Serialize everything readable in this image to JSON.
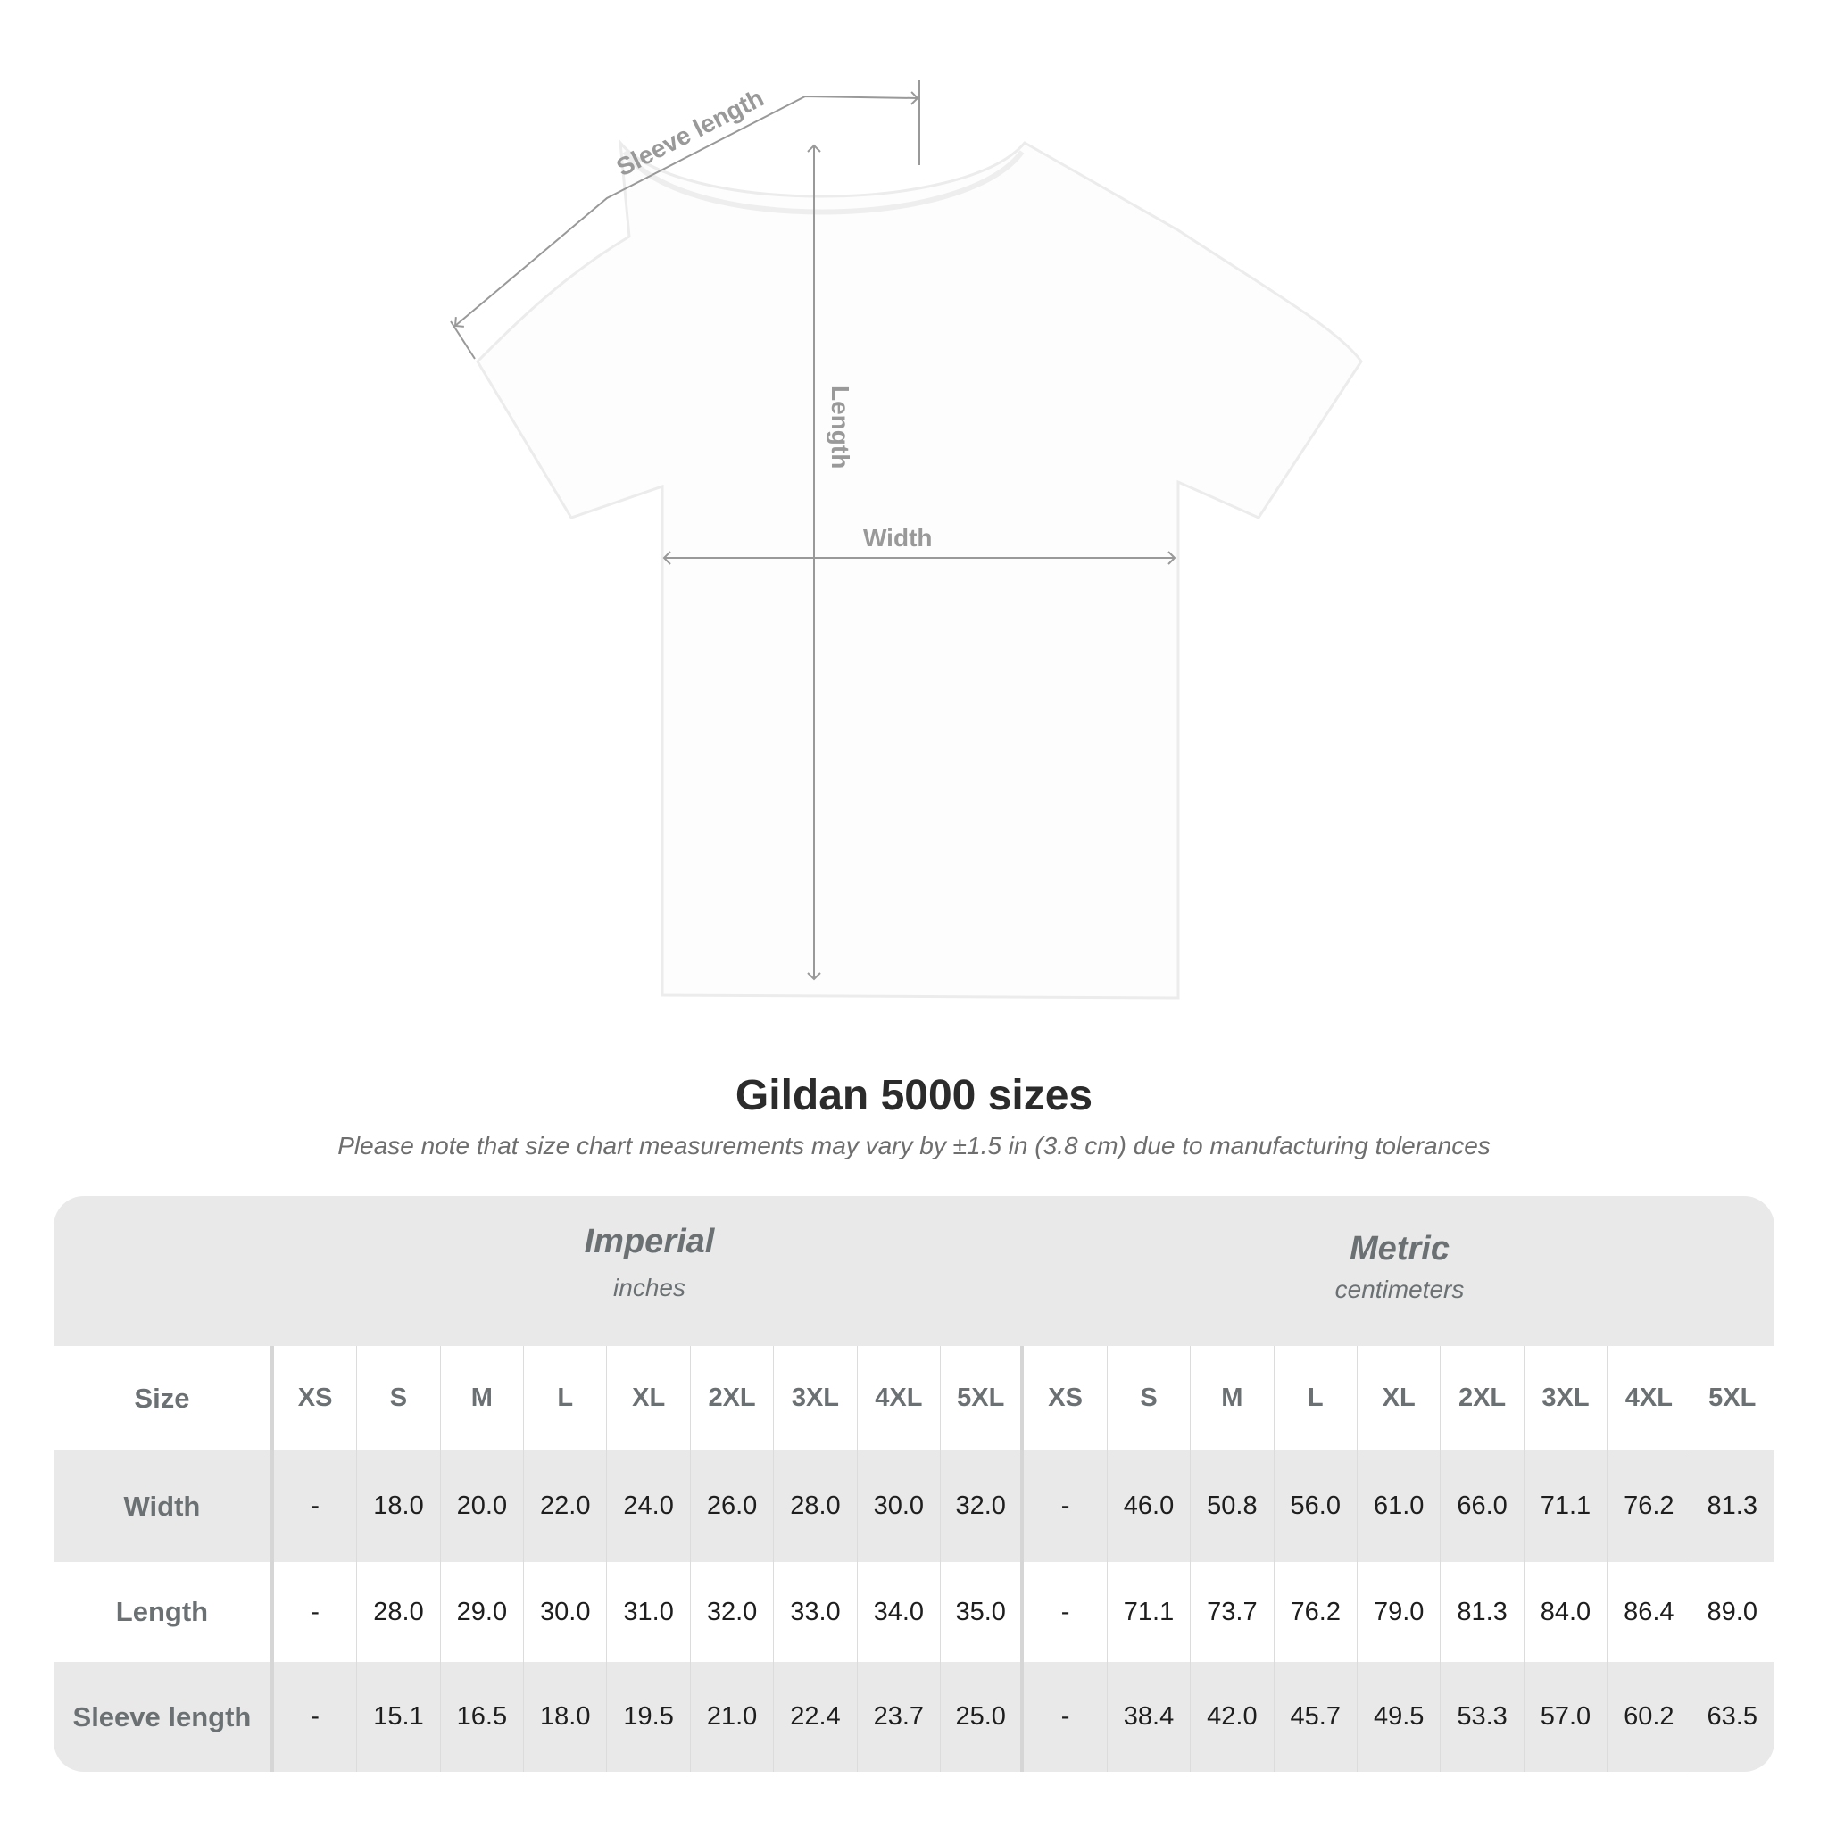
{
  "diagram": {
    "labels": {
      "sleeve": "Sleeve length",
      "length": "Length",
      "width": "Width"
    }
  },
  "title": "Gildan 5000 sizes",
  "note": "Please note that size chart measurements may vary by ±1.5 in (3.8 cm) due to manufacturing tolerances",
  "table": {
    "imperial": {
      "heading": "Imperial",
      "unit": "inches"
    },
    "metric": {
      "heading": "Metric",
      "unit": "centimeters"
    },
    "size_label": "Size",
    "sizes": [
      "XS",
      "S",
      "M",
      "L",
      "XL",
      "2XL",
      "3XL",
      "4XL",
      "5XL"
    ],
    "rows": [
      {
        "label": "Width",
        "imperial": [
          "-",
          "18.0",
          "20.0",
          "22.0",
          "24.0",
          "26.0",
          "28.0",
          "30.0",
          "32.0"
        ],
        "metric": [
          "-",
          "46.0",
          "50.8",
          "56.0",
          "61.0",
          "66.0",
          "71.1",
          "76.2",
          "81.3"
        ]
      },
      {
        "label": "Length",
        "imperial": [
          "-",
          "28.0",
          "29.0",
          "30.0",
          "31.0",
          "32.0",
          "33.0",
          "34.0",
          "35.0"
        ],
        "metric": [
          "-",
          "71.1",
          "73.7",
          "76.2",
          "79.0",
          "81.3",
          "84.0",
          "86.4",
          "89.0"
        ]
      },
      {
        "label": "Sleeve length",
        "imperial": [
          "-",
          "15.1",
          "16.5",
          "18.0",
          "19.5",
          "21.0",
          "22.4",
          "23.7",
          "25.0"
        ],
        "metric": [
          "-",
          "38.4",
          "42.0",
          "45.7",
          "49.5",
          "53.3",
          "57.0",
          "60.2",
          "63.5"
        ]
      }
    ]
  }
}
